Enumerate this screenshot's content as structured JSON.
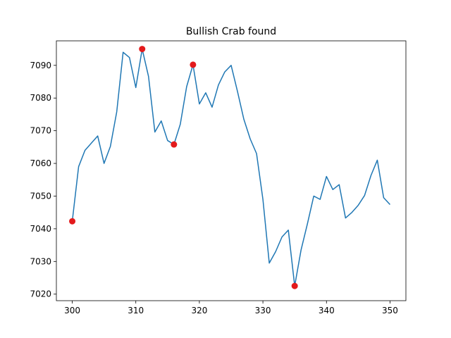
{
  "chart_data": {
    "type": "line",
    "title": "Bullish Crab found",
    "xlabel": "",
    "ylabel": "",
    "xlim": [
      297.5,
      352.5
    ],
    "ylim": [
      7018,
      7097.5
    ],
    "xticks": [
      300,
      310,
      320,
      330,
      340,
      350
    ],
    "yticks": [
      7020,
      7030,
      7040,
      7050,
      7060,
      7070,
      7080,
      7090
    ],
    "grid": false,
    "line_color": "#1f77b4",
    "marker_color": "#e31a1c",
    "series": [
      {
        "x": [
          300,
          301,
          302,
          303,
          304,
          305,
          306,
          307,
          308,
          309,
          310,
          311,
          312,
          313,
          314,
          315,
          316,
          317,
          318,
          319,
          320,
          321,
          322,
          323,
          324,
          325,
          326,
          327,
          328,
          329,
          330,
          331,
          332,
          333,
          334,
          335,
          336,
          337,
          338,
          339,
          340,
          341,
          342,
          343,
          344,
          345,
          346,
          347,
          348,
          349,
          350
        ],
        "values": [
          7042.3,
          7059.0,
          7064.0,
          7066.2,
          7068.4,
          7060.0,
          7065.2,
          7075.8,
          7094.0,
          7092.4,
          7083.2,
          7095.0,
          7086.6,
          7069.6,
          7073.0,
          7067.0,
          7065.8,
          7072.0,
          7083.5,
          7090.2,
          7078.2,
          7081.6,
          7077.2,
          7084.0,
          7088.0,
          7090.0,
          7082.0,
          7073.5,
          7067.5,
          7063.0,
          7049.0,
          7029.5,
          7033.0,
          7037.5,
          7039.6,
          7022.5,
          7033.5,
          7041.5,
          7050.0,
          7049.0,
          7056.0,
          7052.0,
          7053.5,
          7043.3,
          7045.0,
          7047.2,
          7050.2,
          7056.3,
          7061.0,
          7049.5,
          7047.4
        ]
      }
    ],
    "markers": [
      {
        "x": 300,
        "y": 7042.3
      },
      {
        "x": 311,
        "y": 7095.0
      },
      {
        "x": 316,
        "y": 7065.8
      },
      {
        "x": 319,
        "y": 7090.2
      },
      {
        "x": 335,
        "y": 7022.5
      }
    ]
  }
}
